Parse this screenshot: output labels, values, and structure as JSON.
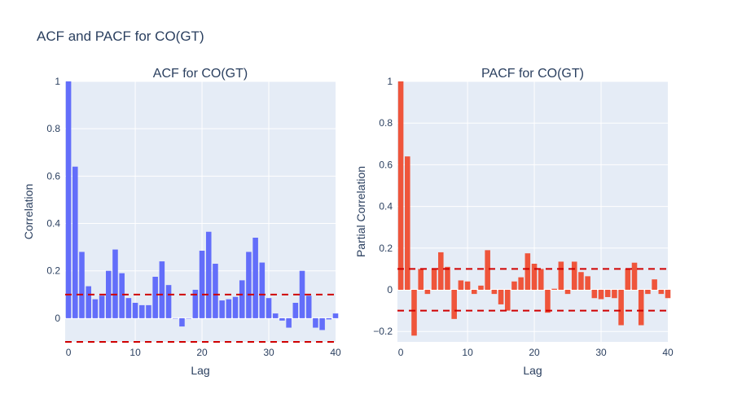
{
  "figure_title": "ACF and PACF for CO(GT)",
  "colors": {
    "plot_bg": "#e5ecf6",
    "grid": "#ffffff",
    "acf_bar": "#636efa",
    "pacf_bar": "#ef553b",
    "conf_line": "#d00000",
    "text": "#2a3f5f"
  },
  "chart_data": [
    {
      "type": "bar",
      "title": "ACF for CO(GT)",
      "xlabel": "Lag",
      "ylabel": "Correlation",
      "xlim": [
        -0.5,
        40
      ],
      "ylim": [
        -0.1,
        1.0
      ],
      "xticks": [
        "0",
        "10",
        "20",
        "30",
        "40"
      ],
      "yticks": [
        "0",
        "0.2",
        "0.4",
        "0.6",
        "0.8",
        "1"
      ],
      "x": [
        0,
        1,
        2,
        3,
        4,
        5,
        6,
        7,
        8,
        9,
        10,
        11,
        12,
        13,
        14,
        15,
        16,
        17,
        18,
        19,
        20,
        21,
        22,
        23,
        24,
        25,
        26,
        27,
        28,
        29,
        30,
        31,
        32,
        33,
        34,
        35,
        36,
        37,
        38,
        39,
        40
      ],
      "values": [
        1.0,
        0.64,
        0.28,
        0.135,
        0.08,
        0.095,
        0.2,
        0.29,
        0.19,
        0.085,
        0.065,
        0.055,
        0.055,
        0.175,
        0.24,
        0.14,
        0.0,
        -0.035,
        0.0,
        0.12,
        0.285,
        0.365,
        0.23,
        0.075,
        0.08,
        0.09,
        0.16,
        0.28,
        0.34,
        0.235,
        0.085,
        0.02,
        -0.01,
        -0.04,
        0.065,
        0.2,
        0.095,
        -0.04,
        -0.05,
        -0.005,
        0.02
      ],
      "confidence": [
        0.1,
        -0.1
      ],
      "grid": true,
      "legend": "none"
    },
    {
      "type": "bar",
      "title": "PACF for CO(GT)",
      "xlabel": "Lag",
      "ylabel": "Partial Correlation",
      "xlim": [
        -0.5,
        40
      ],
      "ylim": [
        -0.25,
        1.0
      ],
      "xticks": [
        "0",
        "10",
        "20",
        "30",
        "40"
      ],
      "yticks": [
        "−0.2",
        "0",
        "0.2",
        "0.4",
        "0.6",
        "0.8",
        "1"
      ],
      "x": [
        0,
        1,
        2,
        3,
        4,
        5,
        6,
        7,
        8,
        9,
        10,
        11,
        12,
        13,
        14,
        15,
        16,
        17,
        18,
        19,
        20,
        21,
        22,
        23,
        24,
        25,
        26,
        27,
        28,
        29,
        30,
        31,
        32,
        33,
        34,
        35,
        36,
        37,
        38,
        39,
        40
      ],
      "values": [
        1.0,
        0.64,
        -0.22,
        0.1,
        -0.02,
        0.1,
        0.18,
        0.11,
        -0.14,
        0.045,
        0.04,
        -0.02,
        0.02,
        0.19,
        -0.02,
        -0.07,
        -0.1,
        0.04,
        0.06,
        0.175,
        0.125,
        0.1,
        -0.11,
        0.005,
        0.135,
        -0.02,
        0.135,
        0.085,
        0.065,
        -0.04,
        -0.045,
        -0.035,
        -0.04,
        -0.17,
        0.1,
        0.13,
        -0.17,
        -0.02,
        0.05,
        -0.02,
        -0.04
      ],
      "confidence": [
        0.1,
        -0.1
      ],
      "grid": true,
      "legend": "none"
    }
  ]
}
